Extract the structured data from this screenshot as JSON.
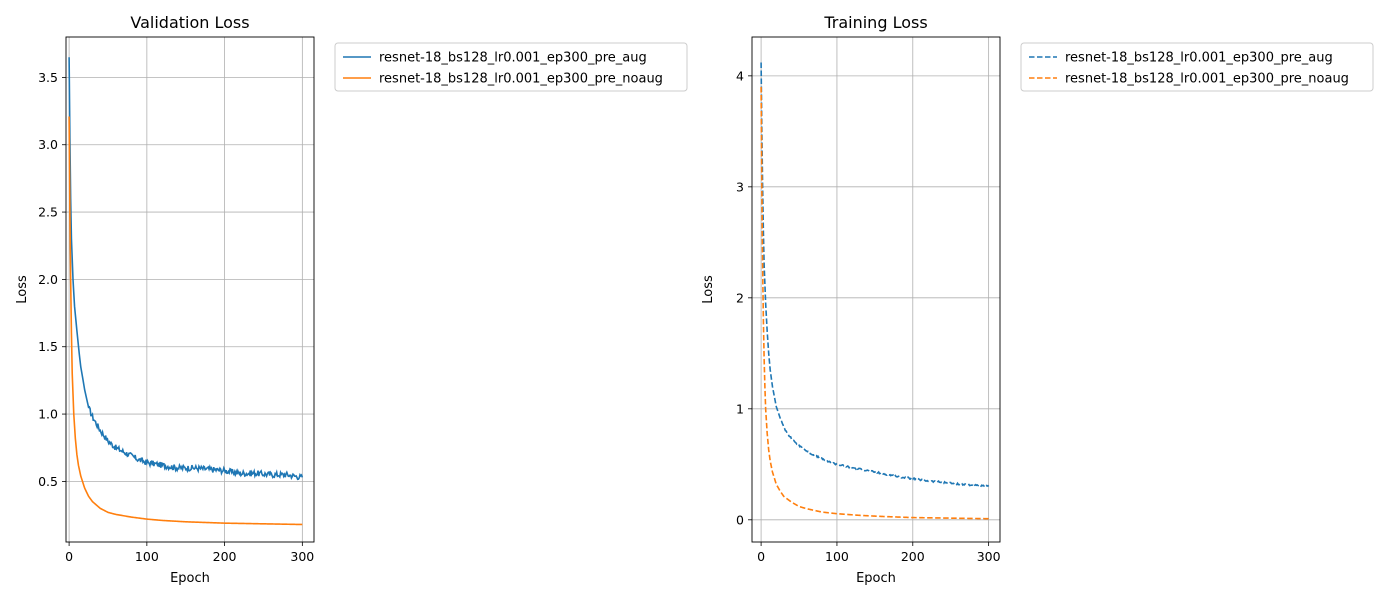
{
  "chart_data": [
    {
      "type": "line",
      "title": "Validation Loss",
      "xlabel": "Epoch",
      "ylabel": "Loss",
      "xlim": [
        -4,
        315
      ],
      "ylim": [
        0.05,
        3.8
      ],
      "xticks": [
        0,
        100,
        200,
        300
      ],
      "yticks": [
        0.5,
        1.0,
        1.5,
        2.0,
        2.5,
        3.0,
        3.5
      ],
      "ytick_labels": [
        "0.5",
        "1.0",
        "1.5",
        "2.0",
        "2.5",
        "3.0",
        "3.5"
      ],
      "grid": true,
      "legend_position": "outside upper right",
      "line_style": "solid",
      "series": [
        {
          "name": "resnet-18_bs128_lr0.001_ep300_pre_aug",
          "color": "#1f77b4",
          "x": [
            0,
            1,
            2,
            3,
            5,
            7,
            10,
            13,
            15,
            18,
            20,
            25,
            30,
            40,
            50,
            60,
            70,
            80,
            90,
            100,
            120,
            140,
            160,
            180,
            200,
            220,
            240,
            260,
            280,
            300
          ],
          "y": [
            3.65,
            3.05,
            2.6,
            2.3,
            2.0,
            1.8,
            1.62,
            1.45,
            1.35,
            1.25,
            1.18,
            1.05,
            0.98,
            0.88,
            0.8,
            0.75,
            0.72,
            0.69,
            0.66,
            0.64,
            0.62,
            0.6,
            0.6,
            0.59,
            0.58,
            0.56,
            0.56,
            0.55,
            0.55,
            0.53
          ]
        },
        {
          "name": "resnet-18_bs128_lr0.001_ep300_pre_noaug",
          "color": "#ff7f0e",
          "x": [
            0,
            1,
            2,
            3,
            4,
            6,
            8,
            10,
            12,
            15,
            20,
            25,
            30,
            40,
            50,
            60,
            70,
            80,
            100,
            120,
            150,
            200,
            250,
            300
          ],
          "y": [
            3.21,
            2.5,
            2.0,
            1.6,
            1.3,
            1.0,
            0.82,
            0.7,
            0.62,
            0.54,
            0.45,
            0.39,
            0.35,
            0.3,
            0.27,
            0.255,
            0.245,
            0.235,
            0.22,
            0.21,
            0.2,
            0.19,
            0.185,
            0.18
          ]
        }
      ]
    },
    {
      "type": "line",
      "title": "Training Loss",
      "xlabel": "Epoch",
      "ylabel": "Loss",
      "xlim": [
        -12,
        315
      ],
      "ylim": [
        -0.2,
        4.35
      ],
      "xticks": [
        0,
        100,
        200,
        300
      ],
      "yticks": [
        0,
        1,
        2,
        3,
        4
      ],
      "ytick_labels": [
        "0",
        "1",
        "2",
        "3",
        "4"
      ],
      "grid": true,
      "legend_position": "outside upper right",
      "line_style": "dashed",
      "series": [
        {
          "name": "resnet-18_bs128_lr0.001_ep300_pre_aug",
          "color": "#1f77b4",
          "x": [
            0,
            1,
            2,
            3,
            4,
            6,
            8,
            10,
            12,
            15,
            20,
            25,
            30,
            40,
            50,
            60,
            70,
            80,
            90,
            100,
            120,
            150,
            180,
            200,
            220,
            250,
            280,
            300
          ],
          "y": [
            4.12,
            3.5,
            3.0,
            2.6,
            2.3,
            1.95,
            1.7,
            1.5,
            1.35,
            1.2,
            1.02,
            0.92,
            0.83,
            0.73,
            0.67,
            0.62,
            0.58,
            0.55,
            0.52,
            0.5,
            0.47,
            0.43,
            0.39,
            0.37,
            0.35,
            0.33,
            0.31,
            0.3
          ]
        },
        {
          "name": "resnet-18_bs128_lr0.001_ep300_pre_noaug",
          "color": "#ff7f0e",
          "x": [
            0,
            1,
            2,
            3,
            4,
            5,
            6,
            8,
            10,
            12,
            15,
            20,
            25,
            30,
            40,
            50,
            60,
            80,
            100,
            130,
            160,
            200,
            250,
            300
          ],
          "y": [
            3.9,
            3.0,
            2.3,
            1.8,
            1.45,
            1.2,
            1.0,
            0.78,
            0.63,
            0.53,
            0.43,
            0.32,
            0.26,
            0.21,
            0.16,
            0.12,
            0.1,
            0.07,
            0.055,
            0.04,
            0.03,
            0.02,
            0.015,
            0.01
          ]
        }
      ]
    }
  ]
}
